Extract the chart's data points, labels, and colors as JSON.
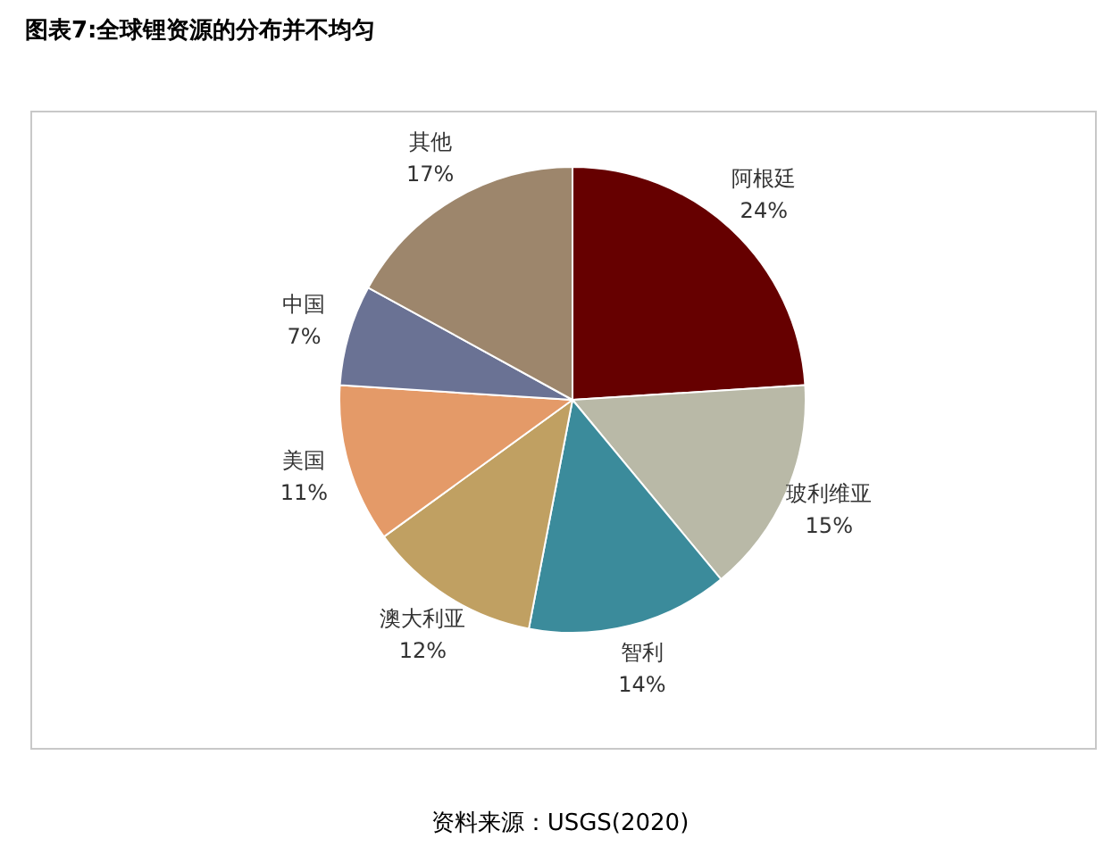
{
  "chart_data": {
    "type": "pie",
    "title": "图表7:全球锂资源的分布并不均匀",
    "categories": [
      "阿根廷",
      "玻利维亚",
      "智利",
      "澳大利亚",
      "美国",
      "中国",
      "其他"
    ],
    "values": [
      24,
      15,
      14,
      12,
      11,
      7,
      17
    ],
    "colors": [
      "#660000",
      "#b9b9a7",
      "#3b8b9b",
      "#c0a062",
      "#e49a68",
      "#6a7294",
      "#9d866c"
    ],
    "value_labels": [
      "24%",
      "15%",
      "14%",
      "12%",
      "11%",
      "7%",
      "17%"
    ],
    "legend": false,
    "annotations": [
      "资料来源：USGS(2020)"
    ]
  }
}
